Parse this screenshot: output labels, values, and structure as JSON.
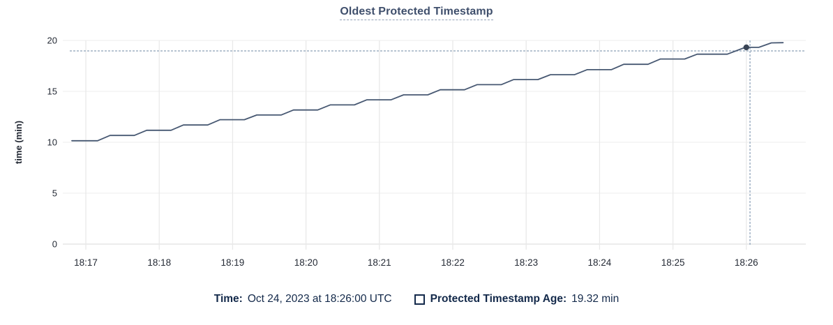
{
  "chart": {
    "title": "Oldest Protected Timestamp"
  },
  "chart_data": {
    "type": "line",
    "title": "Oldest Protected Timestamp",
    "xlabel": "",
    "ylabel": "time (min)",
    "ylim": [
      0,
      20
    ],
    "y_ticks": [
      0,
      5,
      10,
      15,
      20
    ],
    "x_unit": "minutes after 18:00 UTC",
    "x_domain": [
      16.686,
      26.81
    ],
    "grid": true,
    "legend_position": "bottom",
    "x_ticks": [
      {
        "t": 17,
        "label": "18:17"
      },
      {
        "t": 18,
        "label": "18:18"
      },
      {
        "t": 19,
        "label": "18:19"
      },
      {
        "t": 20,
        "label": "18:20"
      },
      {
        "t": 21,
        "label": "18:21"
      },
      {
        "t": 22,
        "label": "18:22"
      },
      {
        "t": 23,
        "label": "18:23"
      },
      {
        "t": 24,
        "label": "18:24"
      },
      {
        "t": 25,
        "label": "18:25"
      },
      {
        "t": 26,
        "label": "18:26"
      }
    ],
    "series": [
      {
        "name": "Protected Timestamp Age",
        "unit": "min",
        "points": [
          [
            16.81,
            10.15
          ],
          [
            17.16,
            10.15
          ],
          [
            17.33,
            10.67
          ],
          [
            17.66,
            10.67
          ],
          [
            17.83,
            11.18
          ],
          [
            18.16,
            11.18
          ],
          [
            18.33,
            11.7
          ],
          [
            18.66,
            11.7
          ],
          [
            18.83,
            12.22
          ],
          [
            19.16,
            12.22
          ],
          [
            19.33,
            12.68
          ],
          [
            19.66,
            12.68
          ],
          [
            19.83,
            13.17
          ],
          [
            20.16,
            13.17
          ],
          [
            20.33,
            13.67
          ],
          [
            20.66,
            13.67
          ],
          [
            20.83,
            14.17
          ],
          [
            21.16,
            14.17
          ],
          [
            21.33,
            14.66
          ],
          [
            21.66,
            14.66
          ],
          [
            21.83,
            15.16
          ],
          [
            22.16,
            15.16
          ],
          [
            22.33,
            15.66
          ],
          [
            22.66,
            15.66
          ],
          [
            22.83,
            16.16
          ],
          [
            23.16,
            16.16
          ],
          [
            23.33,
            16.64
          ],
          [
            23.66,
            16.64
          ],
          [
            23.83,
            17.13
          ],
          [
            24.16,
            17.13
          ],
          [
            24.33,
            17.66
          ],
          [
            24.66,
            17.66
          ],
          [
            24.83,
            18.18
          ],
          [
            25.16,
            18.18
          ],
          [
            25.33,
            18.65
          ],
          [
            25.74,
            18.65
          ],
          [
            25.97,
            19.28
          ],
          [
            26.0,
            19.32
          ],
          [
            26.17,
            19.32
          ],
          [
            26.34,
            19.76
          ],
          [
            26.5,
            19.78
          ]
        ]
      }
    ],
    "hover": {
      "marker_t": 26.0,
      "marker_value": 19.32,
      "crosshair_t": 26.05,
      "crosshair_value": 18.97,
      "time_text": "Oct 24, 2023 at 18:26:00 UTC",
      "value_text": "19.32 min"
    }
  },
  "legend": {
    "time_label": "Time:",
    "time_value": "Oct 24, 2023 at 18:26:00 UTC",
    "series_label": "Protected Timestamp Age:",
    "series_value": "19.32 min"
  },
  "colors": {
    "line": "#475872",
    "marker": "#394455",
    "crosshair": "#9fb1c4",
    "grid_vertical": "#e9e9e9",
    "grid_horizontal": "#f1f1f1",
    "axis_line": "#e0e0e0",
    "tick_text": "#242a35",
    "title_text": "#3f4f6c",
    "legend_text": "#13294a"
  }
}
